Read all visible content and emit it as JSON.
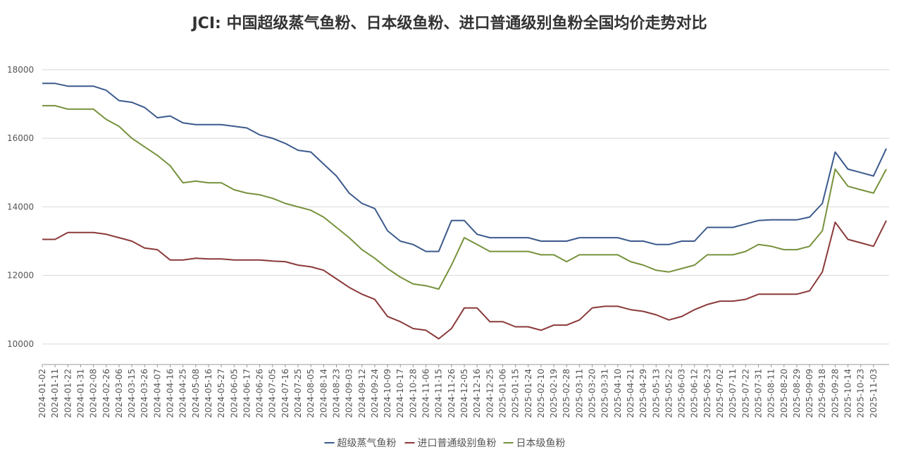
{
  "chart_data": {
    "type": "line",
    "title": "JCI: 中国超级蒸气鱼粉、日本级鱼粉、进口普通级别鱼粉全国均价走势对比",
    "categories": [
      "2024-01-02",
      "2024-01-11",
      "2024-01-22",
      "2024-01-31",
      "2024-02-08",
      "2024-02-26",
      "2024-03-06",
      "2024-03-15",
      "2024-03-26",
      "2024-04-07",
      "2024-04-16",
      "2024-04-25",
      "2024-05-08",
      "2024-05-16",
      "2024-05-27",
      "2024-06-05",
      "2024-06-17",
      "2024-06-26",
      "2024-07-05",
      "2024-07-16",
      "2024-07-25",
      "2024-08-05",
      "2024-08-14",
      "2024-08-23",
      "2024-09-03",
      "2024-09-12",
      "2024-09-24",
      "2024-10-09",
      "2024-10-17",
      "2024-10-28",
      "2024-11-06",
      "2024-11-15",
      "2024-11-26",
      "2024-12-05",
      "2024-12-16",
      "2024-12-25",
      "2025-01-06",
      "2025-01-15",
      "2025-01-24",
      "2025-02-10",
      "2025-02-19",
      "2025-02-28",
      "2025-03-11",
      "2025-03-20",
      "2025-03-31",
      "2025-04-10",
      "2025-04-21",
      "2025-04-29",
      "2025-05-13",
      "2025-05-22",
      "2025-06-03",
      "2025-06-12",
      "2025-06-23",
      "2025-07-02",
      "2025-07-11",
      "2025-07-22",
      "2025-07-31",
      "2025-08-11",
      "2025-08-20",
      "2025-08-29",
      "2025-09-09",
      "2025-09-18",
      "2025-09-28",
      "2025-10-14",
      "2025-10-23",
      "2025-11-03",
      null
    ],
    "series": [
      {
        "name": "超级蒸气鱼粉",
        "color": "#3c5a8c",
        "values": [
          17600,
          17600,
          17520,
          17520,
          17520,
          17400,
          17100,
          17050,
          16900,
          16600,
          16650,
          16450,
          16400,
          16400,
          16400,
          16350,
          16300,
          16100,
          16000,
          15850,
          15650,
          15600,
          15250,
          14900,
          14400,
          14100,
          13950,
          13300,
          13000,
          12900,
          12700,
          12700,
          13600,
          13600,
          13200,
          13100,
          13100,
          13100,
          13100,
          13000,
          13000,
          13000,
          13100,
          13100,
          13100,
          13100,
          13000,
          13000,
          12900,
          12900,
          13000,
          13000,
          13400,
          13400,
          13400,
          13500,
          13600,
          13620,
          13620,
          13620,
          13700,
          14100,
          15600,
          15100,
          15000,
          14900,
          15700
        ]
      },
      {
        "name": "进口普通级别鱼粉",
        "color": "#8b3a3a",
        "values": [
          13050,
          13050,
          13250,
          13250,
          13250,
          13200,
          13100,
          13000,
          12800,
          12750,
          12450,
          12450,
          12500,
          12480,
          12480,
          12450,
          12450,
          12450,
          12420,
          12400,
          12300,
          12250,
          12150,
          11900,
          11650,
          11450,
          11300,
          10800,
          10650,
          10450,
          10400,
          10150,
          10450,
          11050,
          11050,
          10650,
          10650,
          10500,
          10500,
          10400,
          10550,
          10550,
          10700,
          11050,
          11100,
          11100,
          11000,
          10950,
          10850,
          10700,
          10800,
          11000,
          11150,
          11250,
          11250,
          11300,
          11450,
          11450,
          11450,
          11450,
          11550,
          12100,
          13550,
          13050,
          12950,
          12850,
          13600
        ]
      },
      {
        "name": "日本级鱼粉",
        "color": "#76923c",
        "values": [
          16950,
          16950,
          16850,
          16850,
          16850,
          16550,
          16350,
          16000,
          15750,
          15500,
          15200,
          14700,
          14750,
          14700,
          14700,
          14500,
          14400,
          14350,
          14250,
          14100,
          14000,
          13900,
          13700,
          13400,
          13100,
          12750,
          12500,
          12200,
          11950,
          11750,
          11700,
          11600,
          12300,
          13100,
          12900,
          12700,
          12700,
          12700,
          12700,
          12600,
          12600,
          12400,
          12600,
          12600,
          12600,
          12600,
          12400,
          12300,
          12150,
          12100,
          12200,
          12300,
          12600,
          12600,
          12600,
          12700,
          12900,
          12850,
          12750,
          12750,
          12850,
          13300,
          15100,
          14600,
          14500,
          14400,
          15100
        ]
      }
    ],
    "ylim": [
      9400,
      18800
    ],
    "yticks": [
      10000,
      12000,
      14000,
      16000,
      18000
    ],
    "grid": true,
    "legend": "bottom"
  }
}
